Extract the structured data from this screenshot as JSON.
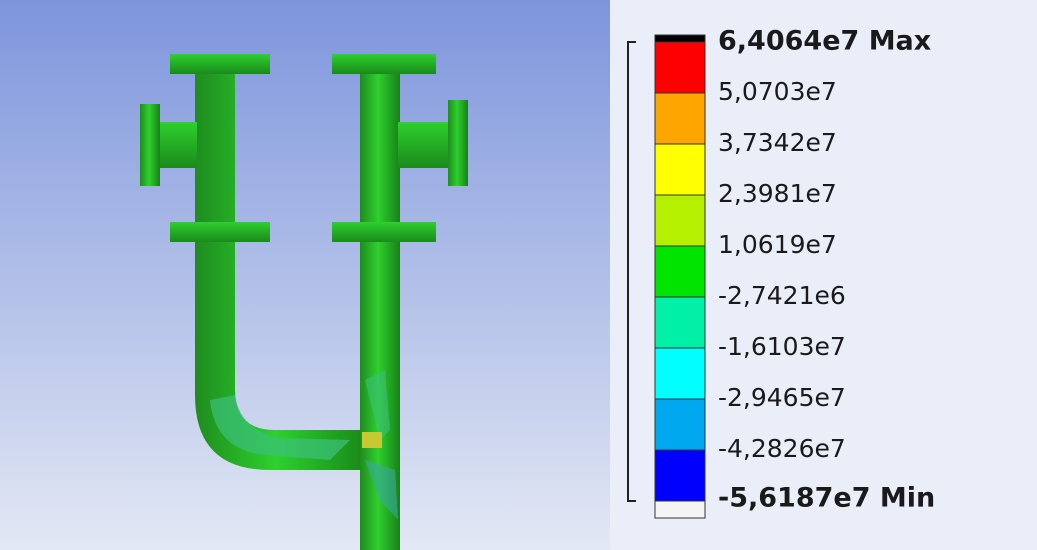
{
  "legend": {
    "band_colors": [
      "#000000",
      "#ff0000",
      "#ffa500",
      "#ffff00",
      "#b4f000",
      "#00e400",
      "#00f0a8",
      "#00ffff",
      "#00a8f0",
      "#0000ff",
      "#f4f4f4"
    ],
    "entries": [
      {
        "label": "6,4064e7 Max"
      },
      {
        "label": "5,0703e7"
      },
      {
        "label": "3,7342e7"
      },
      {
        "label": "2,3981e7"
      },
      {
        "label": "1,0619e7"
      },
      {
        "label": "-2,7421e6"
      },
      {
        "label": "-1,6103e7"
      },
      {
        "label": "-2,9465e7"
      },
      {
        "label": "-4,2826e7"
      },
      {
        "label": "-5,6187e7 Min"
      }
    ]
  }
}
